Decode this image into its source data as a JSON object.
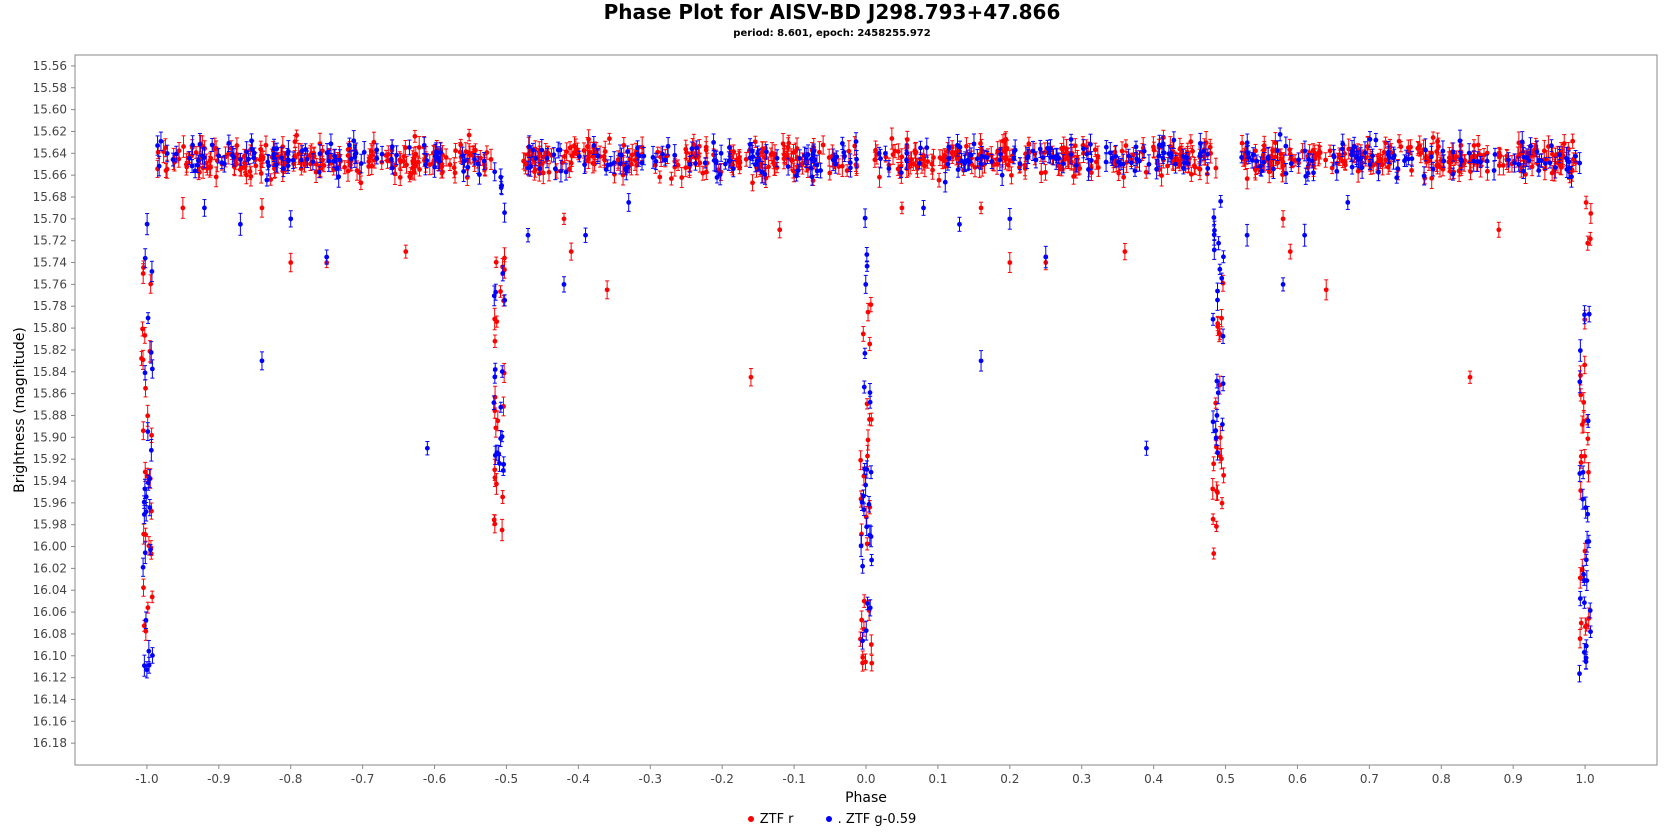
{
  "chart_data": {
    "type": "scatter",
    "title": "Phase Plot for AISV-BD J298.793+47.866",
    "subtitle": "period: 8.601, epoch: 2458255.972",
    "xlabel": "Phase",
    "ylabel": "Brightness (magnitude)",
    "xlim": [
      -1.1,
      1.1
    ],
    "ylim": [
      16.2,
      15.55
    ],
    "y_inverted": true,
    "x_ticks": [
      "-1.0",
      "-0.9",
      "-0.8",
      "-0.7",
      "-0.6",
      "-0.5",
      "-0.4",
      "-0.3",
      "-0.2",
      "-0.1",
      "0.0",
      "0.1",
      "0.2",
      "0.3",
      "0.4",
      "0.5",
      "0.6",
      "0.7",
      "0.8",
      "0.9",
      "1.0"
    ],
    "y_ticks": [
      "15.56",
      "15.58",
      "15.60",
      "15.62",
      "15.64",
      "15.66",
      "15.68",
      "15.70",
      "15.72",
      "15.74",
      "15.76",
      "15.78",
      "15.80",
      "15.82",
      "15.84",
      "15.86",
      "15.88",
      "15.90",
      "15.92",
      "15.94",
      "15.96",
      "15.98",
      "16.00",
      "16.02",
      "16.04",
      "16.06",
      "16.08",
      "16.10",
      "16.12",
      "16.14",
      "16.16",
      "16.18"
    ],
    "grid": false,
    "legend_position": "bottom",
    "error_bars": true,
    "baseline_magnitude": 15.645,
    "baseline_scatter": 0.015,
    "series": [
      {
        "name": "ZTF r",
        "color": "#ff0000",
        "primary_eclipse_depth": 16.1,
        "secondary_eclipse_depth": 16.0,
        "outliers": [
          {
            "x": -0.8,
            "y": 15.74
          },
          {
            "x": -0.75,
            "y": 15.74
          },
          {
            "x": -0.84,
            "y": 15.69
          },
          {
            "x": -0.64,
            "y": 15.73
          },
          {
            "x": -0.36,
            "y": 15.765
          },
          {
            "x": -0.41,
            "y": 15.73
          },
          {
            "x": -0.42,
            "y": 15.7
          },
          {
            "x": -0.16,
            "y": 15.845
          },
          {
            "x": -0.12,
            "y": 15.71
          },
          {
            "x": 0.2,
            "y": 15.74
          },
          {
            "x": 0.25,
            "y": 15.74
          },
          {
            "x": 0.16,
            "y": 15.69
          },
          {
            "x": 0.36,
            "y": 15.73
          },
          {
            "x": 0.64,
            "y": 15.765
          },
          {
            "x": 0.59,
            "y": 15.73
          },
          {
            "x": 0.58,
            "y": 15.7
          },
          {
            "x": 0.84,
            "y": 15.845
          },
          {
            "x": 0.88,
            "y": 15.71
          },
          {
            "x": -0.95,
            "y": 15.69
          },
          {
            "x": 0.05,
            "y": 15.69
          }
        ]
      },
      {
        "name": ". ZTF g-0.59",
        "color": "#0000ff",
        "primary_eclipse_depth": 16.12,
        "secondary_eclipse_depth": 15.93,
        "outliers": [
          {
            "x": -0.84,
            "y": 15.83
          },
          {
            "x": -0.61,
            "y": 15.91
          },
          {
            "x": -0.42,
            "y": 15.76
          },
          {
            "x": -0.39,
            "y": 15.715
          },
          {
            "x": -0.87,
            "y": 15.705
          },
          {
            "x": -0.8,
            "y": 15.7
          },
          {
            "x": -0.75,
            "y": 15.735
          },
          {
            "x": -0.47,
            "y": 15.715
          },
          {
            "x": 0.16,
            "y": 15.83
          },
          {
            "x": 0.39,
            "y": 15.91
          },
          {
            "x": 0.58,
            "y": 15.76
          },
          {
            "x": 0.61,
            "y": 15.715
          },
          {
            "x": 0.13,
            "y": 15.705
          },
          {
            "x": 0.2,
            "y": 15.7
          },
          {
            "x": 0.25,
            "y": 15.735
          },
          {
            "x": 0.53,
            "y": 15.715
          },
          {
            "x": -0.92,
            "y": 15.69
          },
          {
            "x": 0.08,
            "y": 15.69
          },
          {
            "x": -0.33,
            "y": 15.685
          },
          {
            "x": 0.67,
            "y": 15.685
          }
        ]
      }
    ]
  }
}
